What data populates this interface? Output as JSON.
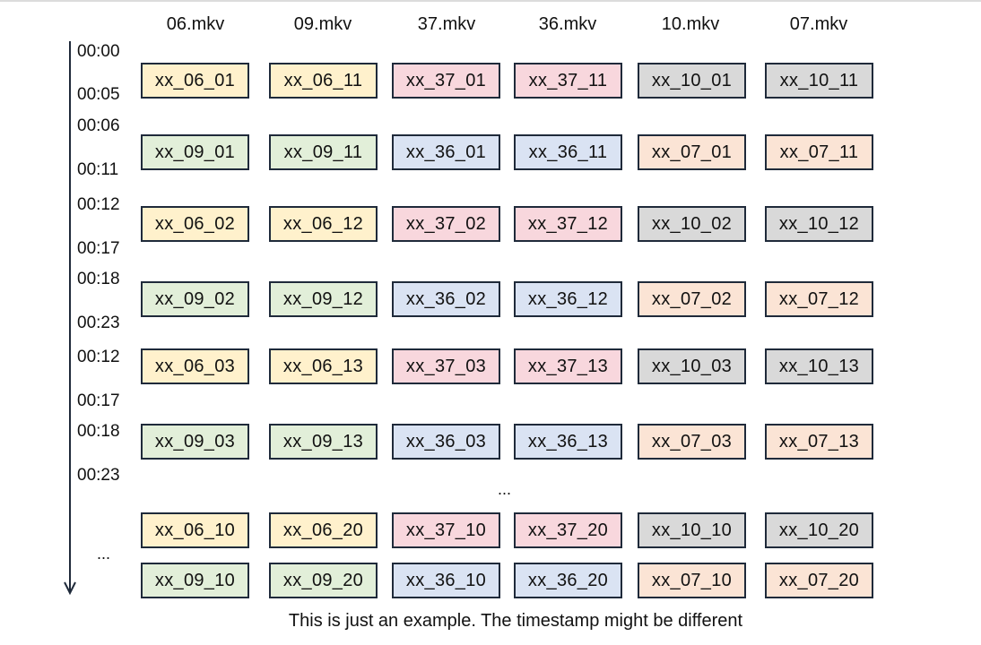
{
  "headers": [
    "06.mkv",
    "09.mkv",
    "37.mkv",
    "36.mkv",
    "10.mkv",
    "07.mkv"
  ],
  "time_labels": [
    "00:00",
    "00:05",
    "00:06",
    "00:11",
    "00:12",
    "00:17",
    "00:18",
    "00:23",
    "00:12",
    "00:17",
    "00:18",
    "00:23"
  ],
  "rows": [
    [
      "xx_06_01",
      "xx_06_11",
      "xx_37_01",
      "xx_37_11",
      "xx_10_01",
      "xx_10_11"
    ],
    [
      "xx_09_01",
      "xx_09_11",
      "xx_36_01",
      "xx_36_11",
      "xx_07_01",
      "xx_07_11"
    ],
    [
      "xx_06_02",
      "xx_06_12",
      "xx_37_02",
      "xx_37_12",
      "xx_10_02",
      "xx_10_12"
    ],
    [
      "xx_09_02",
      "xx_09_12",
      "xx_36_02",
      "xx_36_12",
      "xx_07_02",
      "xx_07_12"
    ],
    [
      "xx_06_03",
      "xx_06_13",
      "xx_37_03",
      "xx_37_13",
      "xx_10_03",
      "xx_10_13"
    ],
    [
      "xx_09_03",
      "xx_09_13",
      "xx_36_03",
      "xx_36_13",
      "xx_07_03",
      "xx_07_13"
    ],
    [
      "xx_06_10",
      "xx_06_20",
      "xx_37_10",
      "xx_37_20",
      "xx_10_10",
      "xx_10_20"
    ],
    [
      "xx_09_10",
      "xx_09_20",
      "xx_36_10",
      "xx_36_20",
      "xx_07_10",
      "xx_07_20"
    ]
  ],
  "ellipsis_middle": "...",
  "ellipsis_axis": "...",
  "caption": "This is just an example. The timestamp might be different",
  "colors": {
    "yellow": "#fff1cc",
    "green": "#e2efd9",
    "pink": "#f8d7dd",
    "blue": "#dae3f3",
    "gray": "#d9d9d9",
    "peach": "#fbe4d5",
    "border": "#1f2a3a"
  }
}
